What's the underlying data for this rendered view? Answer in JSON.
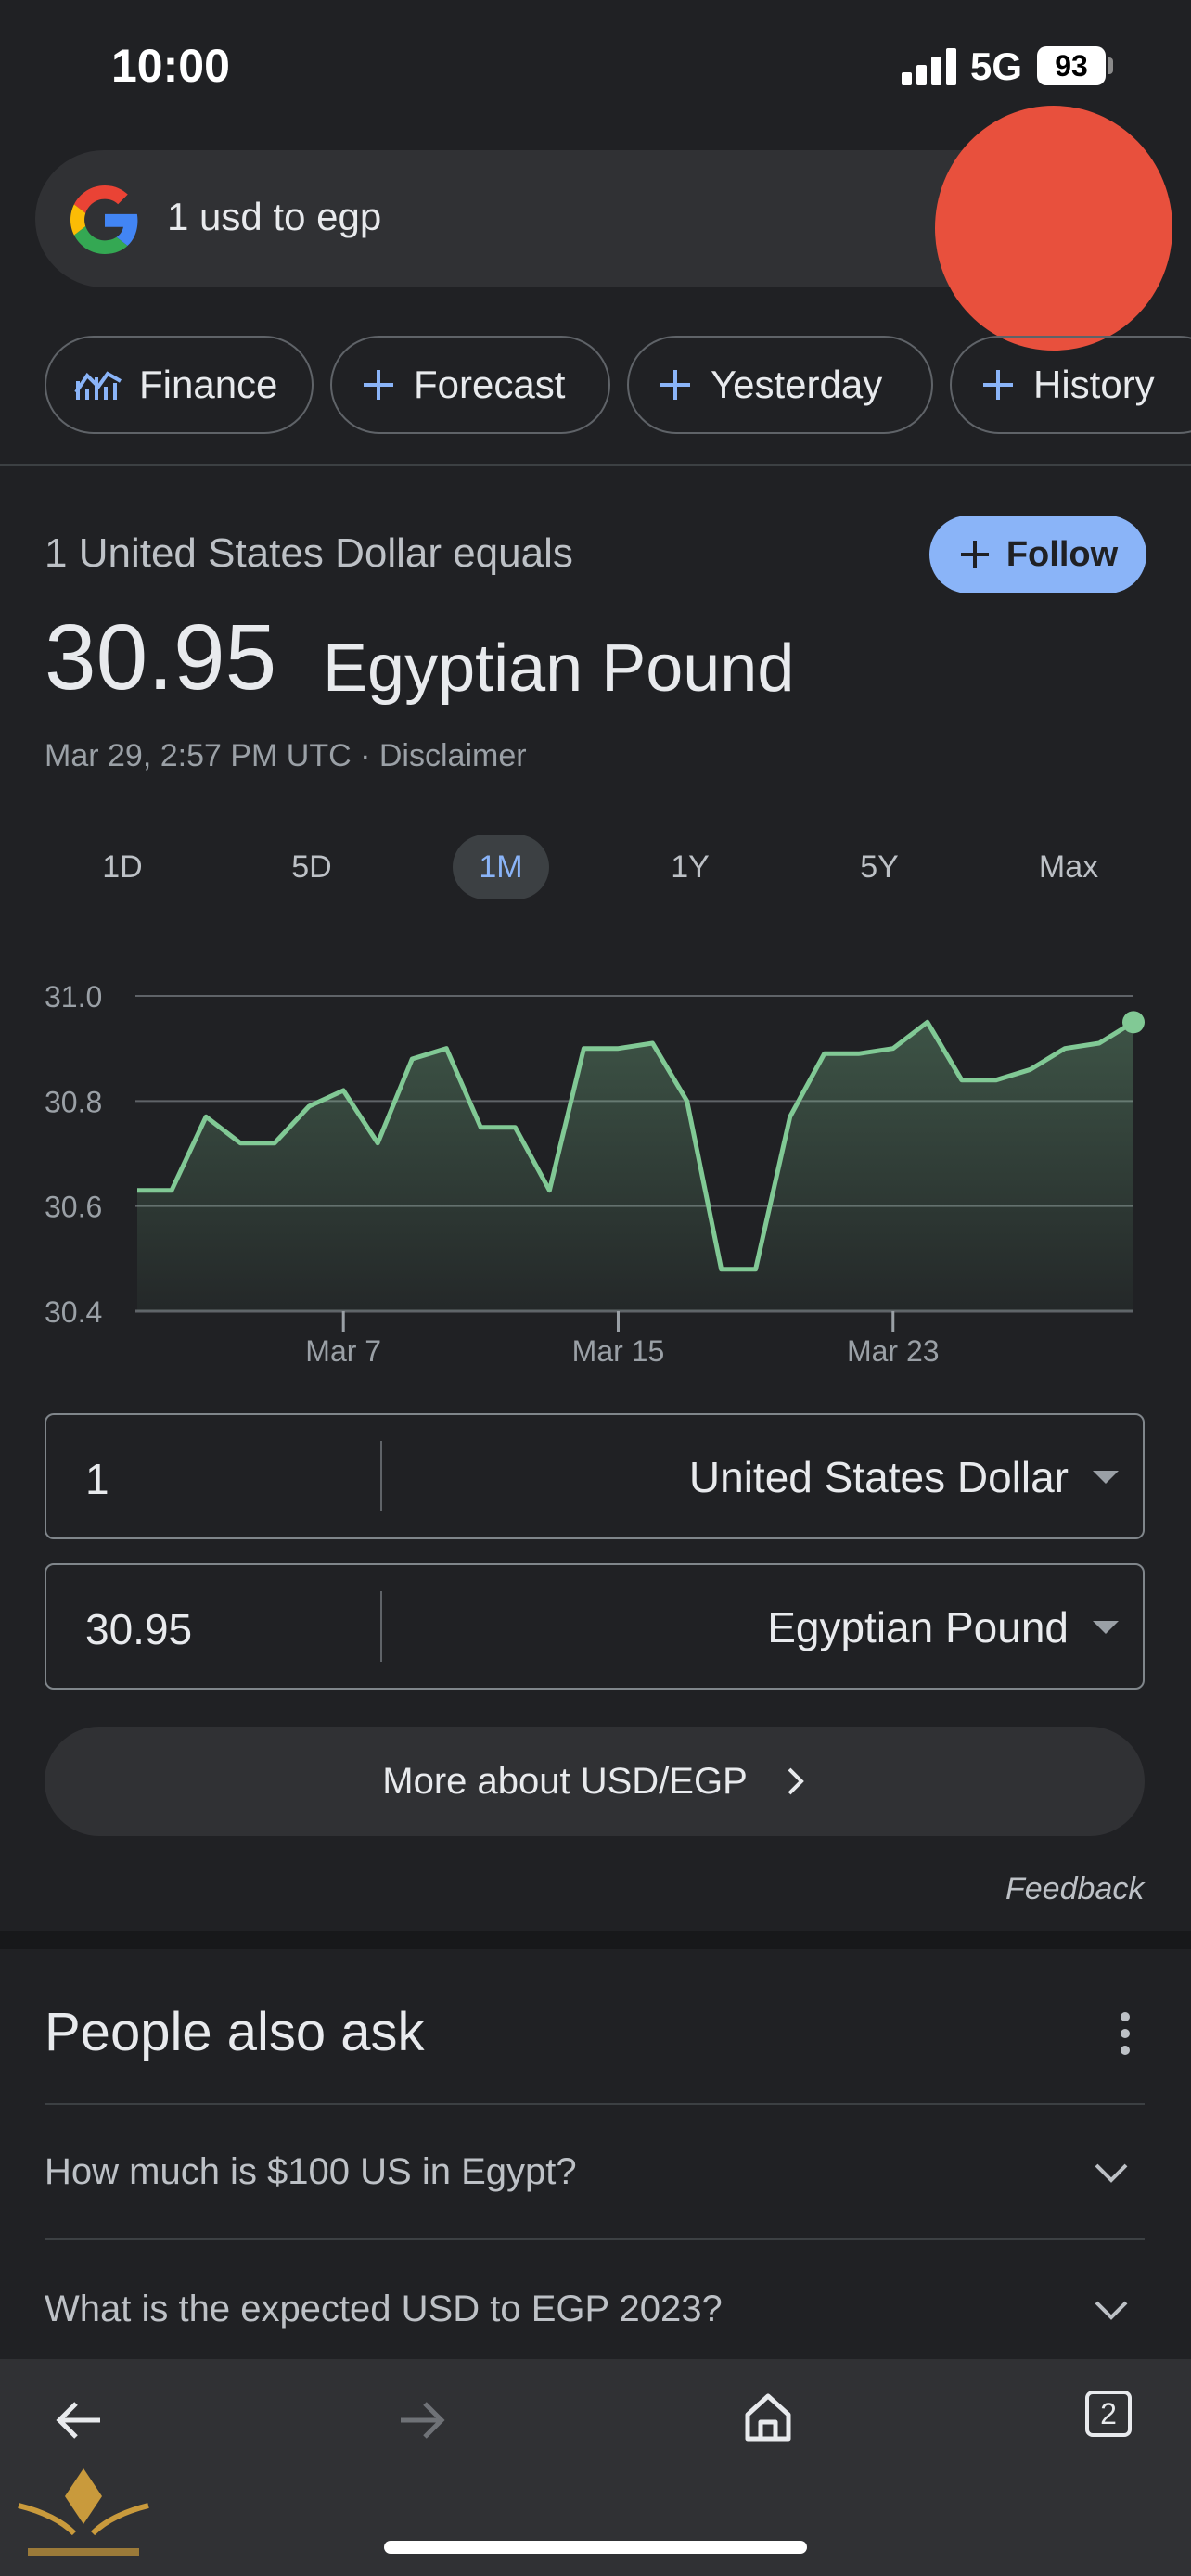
{
  "status_bar": {
    "time": "10:00",
    "network": "5G",
    "battery": "93"
  },
  "search": {
    "query": "1 usd to egp"
  },
  "chips": [
    {
      "label": "Finance",
      "icon": "finance-chart-icon"
    },
    {
      "label": "Forecast",
      "icon": "plus-icon"
    },
    {
      "label": "Yesterday",
      "icon": "plus-icon"
    },
    {
      "label": "History",
      "icon": "plus-icon"
    }
  ],
  "converter_card": {
    "equals_label": "1 United States Dollar equals",
    "follow_label": "Follow",
    "rate_value": "30.95",
    "rate_currency": "Egyptian Pound",
    "timestamp": "Mar 29, 2:57 PM UTC",
    "separator": " · ",
    "disclaimer": "Disclaimer",
    "ranges": [
      "1D",
      "5D",
      "1M",
      "1Y",
      "5Y",
      "Max"
    ],
    "active_range": "1M"
  },
  "chart_data": {
    "type": "area",
    "title": "",
    "xlabel": "",
    "ylabel": "",
    "ylim": [
      30.4,
      31.0
    ],
    "y_ticks": [
      "31.0",
      "30.8",
      "30.6",
      "30.4"
    ],
    "x_tick_labels": [
      {
        "label": "Mar 7",
        "day": 7
      },
      {
        "label": "Mar 15",
        "day": 15
      },
      {
        "label": "Mar 23",
        "day": 23
      }
    ],
    "grid": true,
    "line_color": "#81c995",
    "x_days": [
      1,
      2,
      3,
      4,
      5,
      6,
      7,
      8,
      9,
      10,
      11,
      12,
      13,
      14,
      15,
      16,
      17,
      18,
      19,
      20,
      21,
      22,
      23,
      24,
      25,
      26,
      27,
      28,
      29,
      30
    ],
    "values": [
      30.63,
      30.63,
      30.77,
      30.72,
      30.72,
      30.79,
      30.82,
      30.72,
      30.88,
      30.9,
      30.75,
      30.75,
      30.63,
      30.9,
      30.9,
      30.91,
      30.8,
      30.48,
      30.48,
      30.77,
      30.89,
      30.89,
      30.9,
      30.95,
      30.84,
      30.84,
      30.86,
      30.9,
      30.91,
      30.95
    ]
  },
  "converter": {
    "from": {
      "amount": "1",
      "currency": "United States Dollar"
    },
    "to": {
      "amount": "30.95",
      "currency": "Egyptian Pound"
    }
  },
  "more_button": {
    "label": "More about USD/EGP"
  },
  "feedback": "Feedback",
  "people_also_ask": {
    "title": "People also ask",
    "questions": [
      "How much is $100 US in Egypt?",
      "What is the expected USD to EGP 2023?"
    ]
  },
  "browser_bar": {
    "tab_count": "2"
  },
  "colors": {
    "accent": "#8ab4f8",
    "avatar": "#e8503d",
    "chart_line": "#81c995",
    "background": "#202124"
  }
}
